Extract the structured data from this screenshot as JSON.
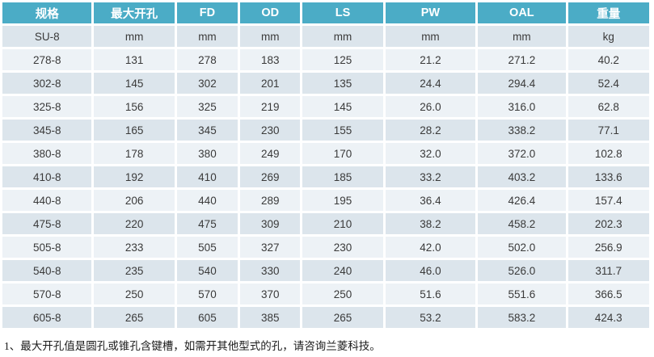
{
  "table": {
    "headers": [
      "规格",
      "最大开孔",
      "FD",
      "OD",
      "LS",
      "PW",
      "OAL",
      "重量"
    ],
    "unit_row": [
      "SU-8",
      "mm",
      "mm",
      "mm",
      "mm",
      "mm",
      "mm",
      "kg"
    ],
    "rows": [
      [
        "278-8",
        "131",
        "278",
        "183",
        "125",
        "21.2",
        "271.2",
        "40.2"
      ],
      [
        "302-8",
        "145",
        "302",
        "201",
        "135",
        "24.4",
        "294.4",
        "52.4"
      ],
      [
        "325-8",
        "156",
        "325",
        "219",
        "145",
        "26.0",
        "316.0",
        "62.8"
      ],
      [
        "345-8",
        "165",
        "345",
        "230",
        "155",
        "28.2",
        "338.2",
        "77.1"
      ],
      [
        "380-8",
        "178",
        "380",
        "249",
        "170",
        "32.0",
        "372.0",
        "102.8"
      ],
      [
        "410-8",
        "192",
        "410",
        "269",
        "185",
        "33.2",
        "403.2",
        "133.6"
      ],
      [
        "440-8",
        "206",
        "440",
        "289",
        "195",
        "36.4",
        "426.4",
        "157.4"
      ],
      [
        "475-8",
        "220",
        "475",
        "309",
        "210",
        "38.2",
        "458.2",
        "202.3"
      ],
      [
        "505-8",
        "233",
        "505",
        "327",
        "230",
        "42.0",
        "502.0",
        "256.9"
      ],
      [
        "540-8",
        "235",
        "540",
        "330",
        "240",
        "46.0",
        "526.0",
        "311.7"
      ],
      [
        "570-8",
        "250",
        "570",
        "370",
        "250",
        "51.6",
        "551.6",
        "366.5"
      ],
      [
        "605-8",
        "265",
        "605",
        "385",
        "265",
        "53.2",
        "583.2",
        "424.3"
      ]
    ]
  },
  "footnote": "1、最大开孔值是圆孔或锥孔含键槽，如需开其他型式的孔，请咨询兰菱科技。",
  "colors": {
    "header_bg": "#4bacc6",
    "header_text": "#ffffff",
    "band_dark": "#dce5ec",
    "band_light": "#edf2f6",
    "body_text": "#3a3a3a",
    "footnote_text": "#1a1a1a"
  }
}
